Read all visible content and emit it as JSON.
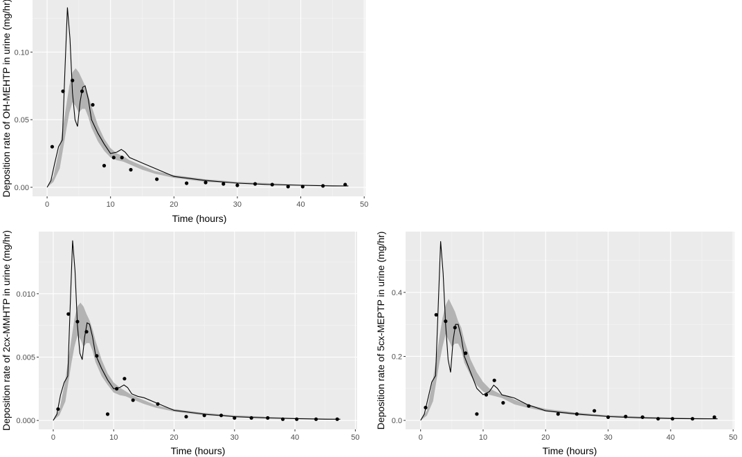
{
  "colors": {
    "panel_bg": "#EBEBEB",
    "grid_major": "#FFFFFF",
    "band": "#B3B3B3",
    "line": "#000000",
    "point": "#000000",
    "tick_text": "#4D4D4D"
  },
  "chart_data": [
    {
      "type": "line",
      "title": "",
      "xlabel": "Time (hours)",
      "ylabel": "Deposition rate of OH-MEHTP in urine (mg/hr)",
      "xlim": [
        -2.3,
        50.2
      ],
      "ylim": [
        -0.0067,
        0.1385
      ],
      "xticks": [
        0,
        10,
        20,
        30,
        40,
        50
      ],
      "xtick_labels": [
        "0",
        "10",
        "20",
        "30",
        "40",
        "50"
      ],
      "yticks": [
        0.0,
        0.05,
        0.1
      ],
      "ytick_labels": [
        "0.00",
        "0.05",
        "0.10"
      ],
      "grid": true,
      "series": [
        {
          "type": "line",
          "x": [
            0,
            0.6,
            1.2,
            1.8,
            2.4,
            2.8,
            3.2,
            3.6,
            4.0,
            4.4,
            4.8,
            5.2,
            5.6,
            6.0,
            6.5,
            7.0,
            8,
            9,
            10,
            11,
            11.7,
            12.3,
            13,
            14,
            15,
            17,
            20,
            25,
            30,
            35,
            40,
            45,
            47.5
          ],
          "y": [
            0,
            0.005,
            0.018,
            0.03,
            0.035,
            0.085,
            0.133,
            0.11,
            0.07,
            0.05,
            0.045,
            0.063,
            0.074,
            0.075,
            0.065,
            0.05,
            0.04,
            0.032,
            0.025,
            0.026,
            0.028,
            0.026,
            0.022,
            0.02,
            0.018,
            0.014,
            0.008,
            0.005,
            0.003,
            0.002,
            0.0015,
            0.001,
            0.001
          ]
        },
        {
          "type": "band",
          "x": [
            0,
            1,
            2,
            3,
            3.5,
            4,
            4.5,
            5,
            5.5,
            6,
            6.5,
            7,
            8,
            9,
            10,
            11,
            12,
            13,
            14,
            15,
            17,
            20,
            25,
            30,
            35,
            40,
            45,
            47.5
          ],
          "ymin": [
            0,
            0.004,
            0.014,
            0.042,
            0.055,
            0.063,
            0.06,
            0.055,
            0.058,
            0.058,
            0.052,
            0.044,
            0.034,
            0.027,
            0.022,
            0.02,
            0.019,
            0.017,
            0.015,
            0.013,
            0.01,
            0.007,
            0.004,
            0.003,
            0.002,
            0.0015,
            0.001,
            0.001
          ],
          "ymax": [
            0,
            0.008,
            0.03,
            0.06,
            0.075,
            0.085,
            0.088,
            0.085,
            0.08,
            0.075,
            0.068,
            0.06,
            0.046,
            0.036,
            0.029,
            0.025,
            0.023,
            0.02,
            0.018,
            0.016,
            0.012,
            0.009,
            0.006,
            0.004,
            0.003,
            0.002,
            0.0015,
            0.001
          ]
        },
        {
          "type": "points",
          "x": [
            0.8,
            2.5,
            4.0,
            5.5,
            7.2,
            9.0,
            10.5,
            11.8,
            13.2,
            17.3,
            22.0,
            25.0,
            27.8,
            30.0,
            32.8,
            35.5,
            38.0,
            40.3,
            43.5,
            47.0
          ],
          "y": [
            0.03,
            0.071,
            0.079,
            0.071,
            0.061,
            0.016,
            0.022,
            0.022,
            0.013,
            0.006,
            0.003,
            0.0035,
            0.0025,
            0.0015,
            0.0025,
            0.002,
            0.0005,
            0.0005,
            0.001,
            0.002
          ]
        }
      ]
    },
    {
      "type": "line",
      "title": "",
      "xlabel": "Time (hours)",
      "ylabel": "Deposition rate of 2cx-MMHTP in urine (mg/hr)",
      "xlim": [
        -2.4,
        50.3
      ],
      "ylim": [
        -0.0007,
        0.0149
      ],
      "xticks": [
        0,
        10,
        20,
        30,
        40,
        50
      ],
      "xtick_labels": [
        "0",
        "10",
        "20",
        "30",
        "40",
        "50"
      ],
      "yticks": [
        0.0,
        0.005,
        0.01
      ],
      "ytick_labels": [
        "0.000",
        "0.005",
        "0.010"
      ],
      "grid": true,
      "series": [
        {
          "type": "line",
          "x": [
            0,
            0.6,
            1.2,
            1.8,
            2.4,
            2.8,
            3.2,
            3.6,
            4.0,
            4.4,
            4.8,
            5.2,
            5.6,
            6.0,
            6.5,
            7.0,
            8,
            9,
            10,
            11,
            11.7,
            12.3,
            13,
            14,
            15,
            17,
            20,
            25,
            30,
            35,
            40,
            45,
            47.5
          ],
          "y": [
            0,
            0.0005,
            0.002,
            0.003,
            0.0035,
            0.009,
            0.0142,
            0.0118,
            0.0075,
            0.0053,
            0.0048,
            0.0066,
            0.0077,
            0.0076,
            0.0066,
            0.0052,
            0.0041,
            0.0032,
            0.0025,
            0.0026,
            0.0028,
            0.0026,
            0.0021,
            0.0019,
            0.0018,
            0.0014,
            0.0008,
            0.0005,
            0.0003,
            0.0002,
            0.00015,
            0.0001,
            0.0001
          ]
        },
        {
          "type": "band",
          "x": [
            0,
            1,
            2,
            3,
            3.5,
            4,
            4.5,
            5,
            5.5,
            6,
            6.5,
            7,
            8,
            9,
            10,
            11,
            12,
            13,
            14,
            15,
            17,
            20,
            25,
            30,
            35,
            40,
            45,
            47.5
          ],
          "ymin": [
            0,
            0.0004,
            0.0015,
            0.0045,
            0.0058,
            0.0067,
            0.0064,
            0.0058,
            0.0061,
            0.0061,
            0.0055,
            0.0046,
            0.0035,
            0.0028,
            0.0022,
            0.002,
            0.0019,
            0.0017,
            0.0015,
            0.0013,
            0.001,
            0.0007,
            0.0004,
            0.0003,
            0.0002,
            0.00015,
            0.0001,
            0.0001
          ],
          "ymax": [
            0,
            0.0008,
            0.0032,
            0.0064,
            0.008,
            0.009,
            0.0093,
            0.009,
            0.0084,
            0.0079,
            0.0072,
            0.0063,
            0.0048,
            0.0037,
            0.003,
            0.0026,
            0.0023,
            0.002,
            0.0018,
            0.0016,
            0.0012,
            0.0009,
            0.0006,
            0.0004,
            0.0003,
            0.0002,
            0.00015,
            0.0001
          ]
        },
        {
          "type": "points",
          "x": [
            0.8,
            2.5,
            4.0,
            5.5,
            7.2,
            9.0,
            10.5,
            11.8,
            13.2,
            17.3,
            22.0,
            25.0,
            27.8,
            30.0,
            32.8,
            35.5,
            38.0,
            40.3,
            43.5,
            47.0
          ],
          "y": [
            0.0009,
            0.0084,
            0.0078,
            0.007,
            0.0051,
            0.0005,
            0.0025,
            0.0033,
            0.0016,
            0.0013,
            0.0003,
            0.0004,
            0.0004,
            0.0002,
            0.0002,
            0.0002,
            0.0001,
            0.0001,
            0.0001,
            0.0001
          ]
        }
      ]
    },
    {
      "type": "line",
      "title": "",
      "xlabel": "Time (hours)",
      "ylabel": "Deposition rate of 5cx-MEPTP in urine (mg/hr)",
      "xlim": [
        -2.4,
        50.2
      ],
      "ylim": [
        -0.028,
        0.59
      ],
      "xticks": [
        0,
        10,
        20,
        30,
        40,
        50
      ],
      "xtick_labels": [
        "0",
        "10",
        "20",
        "30",
        "40",
        "50"
      ],
      "yticks": [
        0.0,
        0.2,
        0.4
      ],
      "ytick_labels": [
        "0.0",
        "0.2",
        "0.4"
      ],
      "grid": true,
      "series": [
        {
          "type": "line",
          "x": [
            0,
            0.6,
            1.2,
            1.8,
            2.4,
            2.8,
            3.2,
            3.6,
            4.0,
            4.4,
            4.8,
            5.2,
            5.6,
            6.0,
            6.5,
            7.0,
            8,
            9,
            10,
            11,
            11.7,
            12.3,
            13,
            14,
            15,
            17,
            20,
            25,
            30,
            35,
            40,
            45,
            47.5
          ],
          "y": [
            0,
            0.02,
            0.07,
            0.12,
            0.14,
            0.35,
            0.56,
            0.46,
            0.3,
            0.19,
            0.15,
            0.25,
            0.3,
            0.3,
            0.26,
            0.2,
            0.15,
            0.1,
            0.08,
            0.09,
            0.11,
            0.1,
            0.08,
            0.075,
            0.07,
            0.05,
            0.03,
            0.02,
            0.012,
            0.008,
            0.006,
            0.005,
            0.005
          ]
        },
        {
          "type": "band",
          "x": [
            0,
            1,
            2,
            3,
            3.5,
            4,
            4.5,
            5,
            5.5,
            6,
            6.5,
            7,
            8,
            9,
            10,
            11,
            12,
            13,
            14,
            15,
            17,
            20,
            25,
            30,
            35,
            40,
            45,
            47.5
          ],
          "ymin": [
            0,
            0.015,
            0.06,
            0.18,
            0.23,
            0.27,
            0.25,
            0.23,
            0.24,
            0.24,
            0.22,
            0.18,
            0.14,
            0.11,
            0.09,
            0.08,
            0.075,
            0.07,
            0.06,
            0.05,
            0.04,
            0.028,
            0.016,
            0.011,
            0.008,
            0.006,
            0.004,
            0.004
          ],
          "ymax": [
            0,
            0.03,
            0.13,
            0.26,
            0.32,
            0.36,
            0.38,
            0.36,
            0.34,
            0.31,
            0.29,
            0.25,
            0.19,
            0.15,
            0.12,
            0.1,
            0.09,
            0.08,
            0.075,
            0.065,
            0.05,
            0.036,
            0.024,
            0.016,
            0.012,
            0.009,
            0.007,
            0.006
          ]
        },
        {
          "type": "points",
          "x": [
            0.8,
            2.5,
            4.0,
            5.5,
            7.2,
            9.0,
            10.5,
            11.8,
            13.2,
            17.3,
            22.0,
            25.0,
            27.8,
            30.0,
            32.8,
            35.5,
            38.0,
            40.3,
            43.5,
            47.0
          ],
          "y": [
            0.04,
            0.33,
            0.31,
            0.29,
            0.21,
            0.02,
            0.08,
            0.125,
            0.055,
            0.045,
            0.02,
            0.02,
            0.03,
            0.01,
            0.012,
            0.01,
            0.005,
            0.005,
            0.005,
            0.01
          ]
        }
      ]
    }
  ]
}
